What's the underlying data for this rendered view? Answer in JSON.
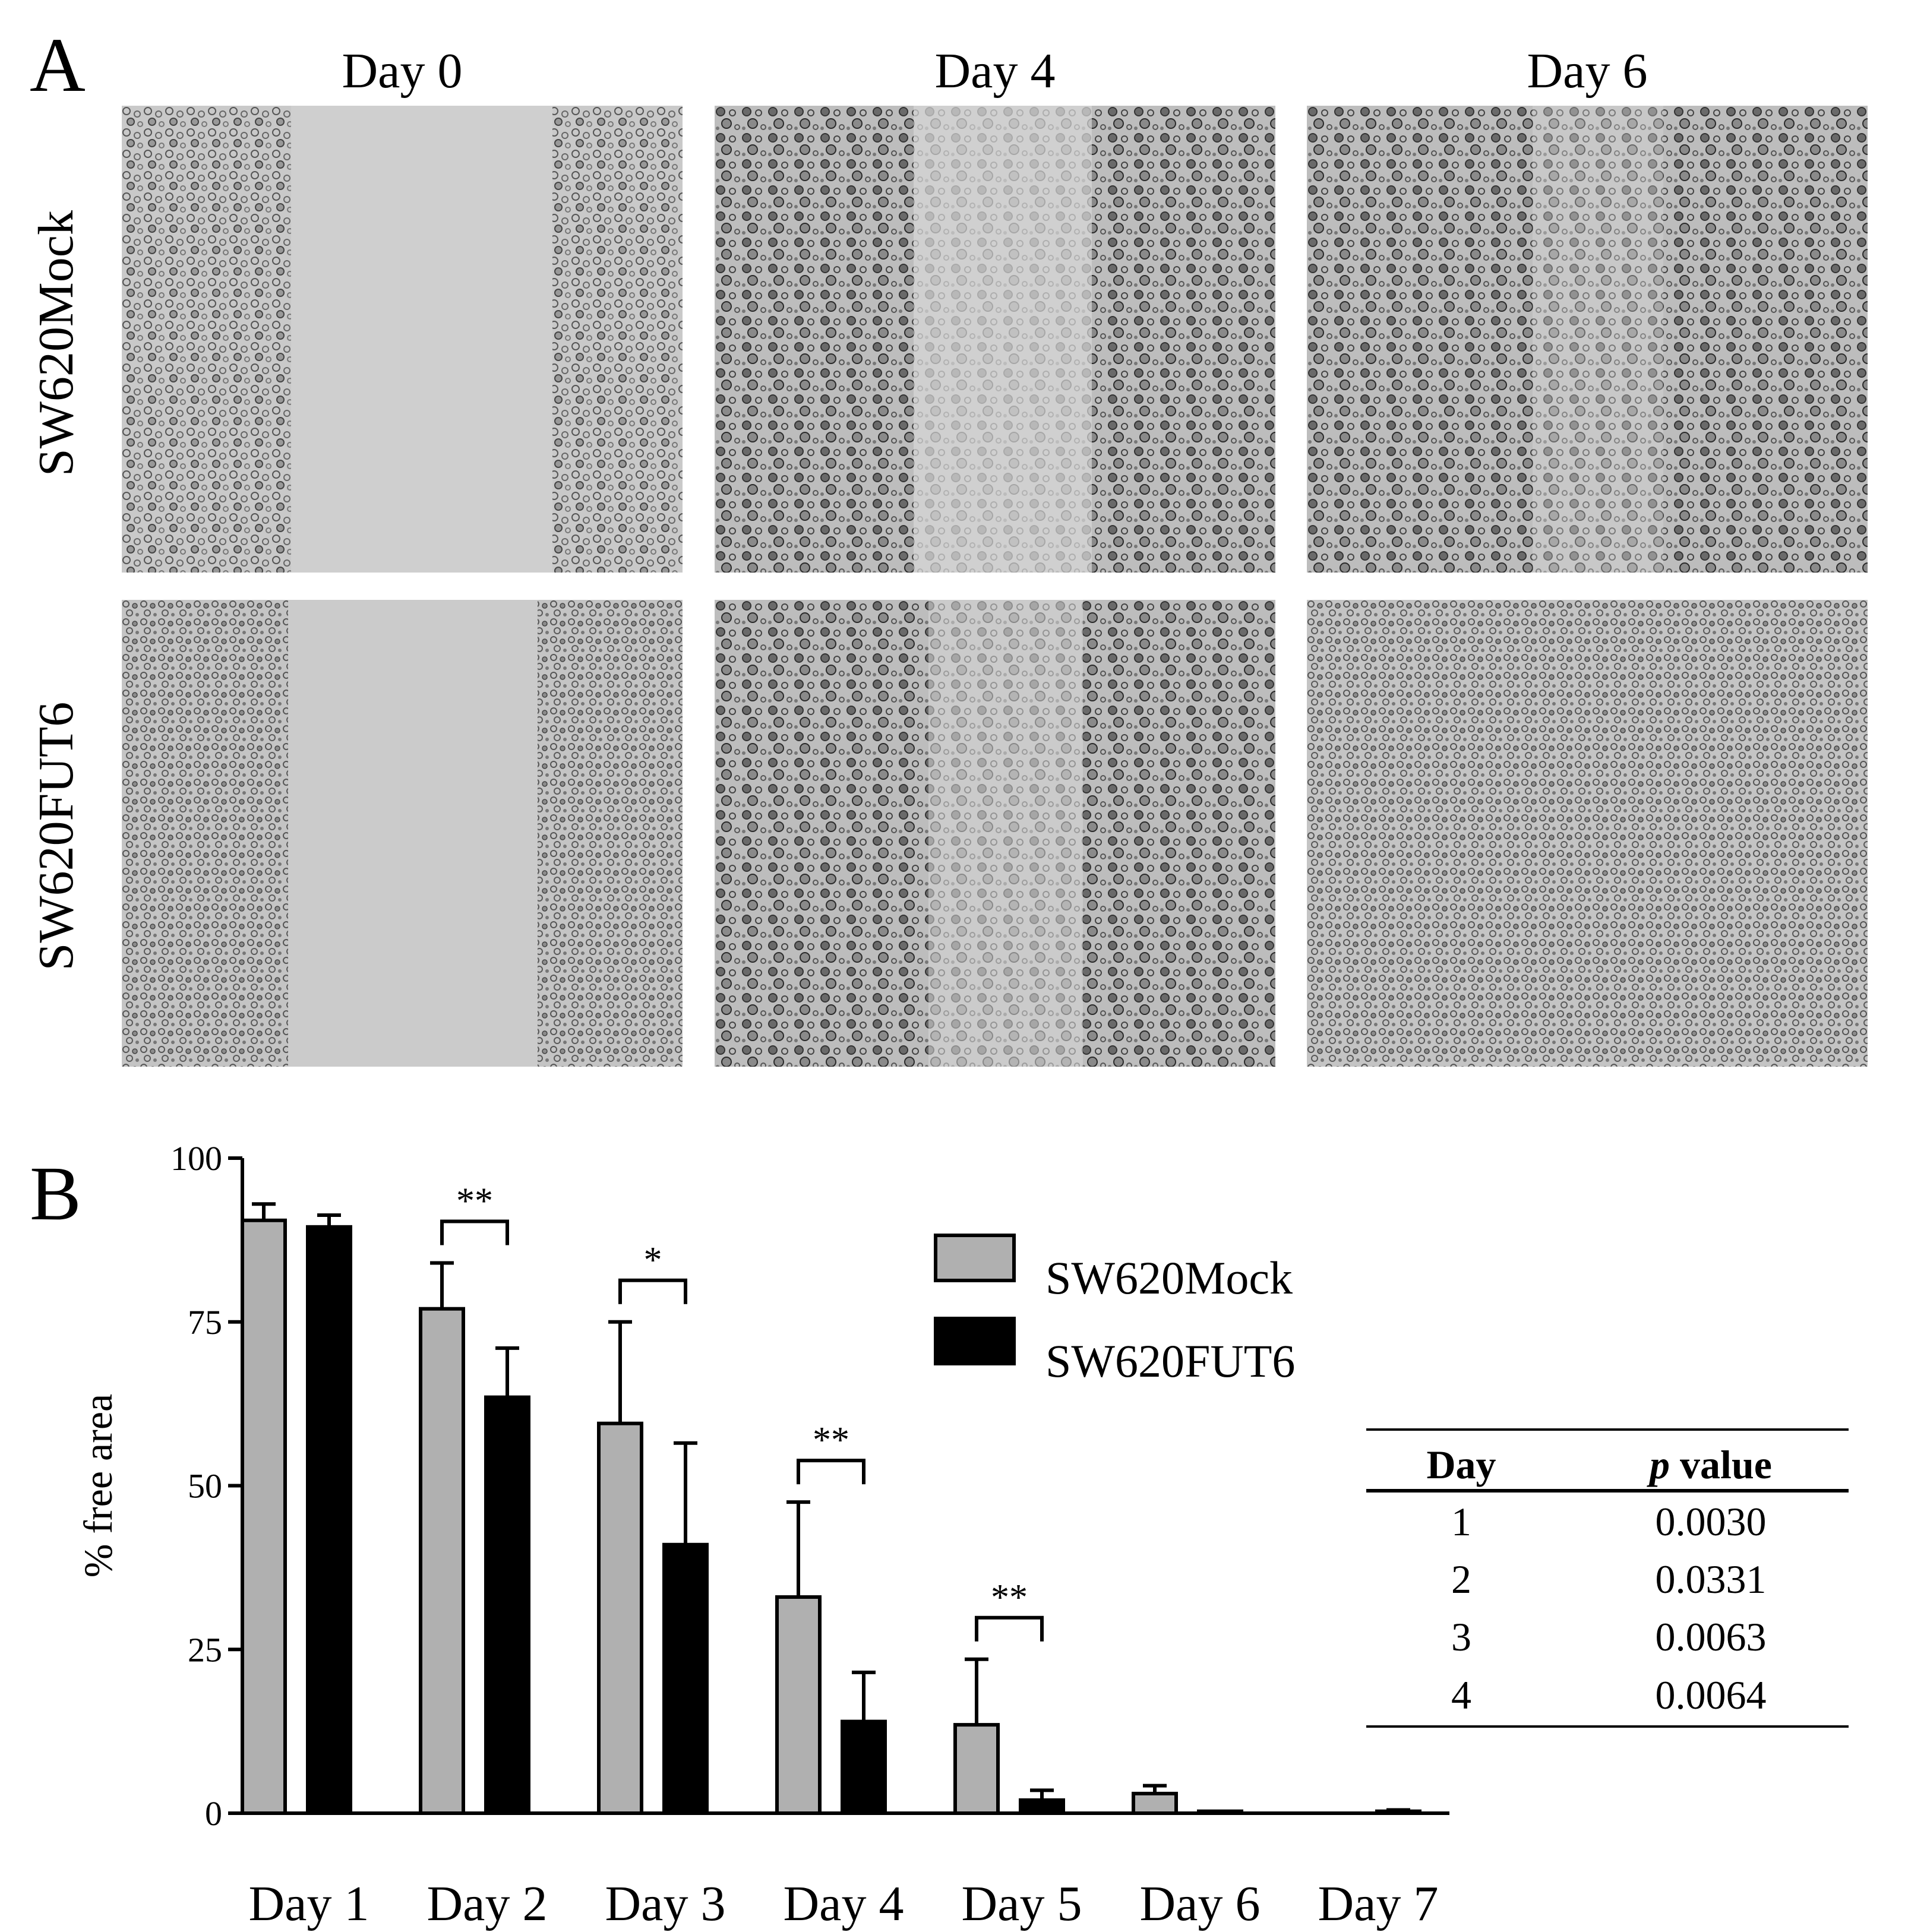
{
  "panel_a": {
    "letter": "A",
    "columns": [
      "Day 0",
      "Day 4",
      "Day 6"
    ],
    "rows": [
      "SW620Mock",
      "SW620FUT6"
    ]
  },
  "panel_b": {
    "letter": "B",
    "legend": [
      "SW620Mock",
      "SW620FUT6"
    ],
    "significance": [
      "**",
      "*",
      "**",
      "**"
    ],
    "table": {
      "headers": [
        "Day",
        "p value"
      ],
      "header_italic_part": "p",
      "header_rest": " value",
      "rows": [
        {
          "day": "1",
          "p": "0.0030"
        },
        {
          "day": "2",
          "p": "0.0331"
        },
        {
          "day": "3",
          "p": "0.0063"
        },
        {
          "day": "4",
          "p": "0.0064"
        }
      ]
    }
  },
  "chart_data": {
    "type": "bar",
    "title": "",
    "xlabel": "",
    "ylabel": "% free area",
    "ylim": [
      0,
      100
    ],
    "yticks": [
      0,
      25,
      50,
      75,
      100
    ],
    "categories": [
      "Day 1",
      "Day 2",
      "Day 3",
      "Day 4",
      "Day 5",
      "Day 6",
      "Day 7"
    ],
    "series": [
      {
        "name": "SW620Mock",
        "color": "#b0b0b0",
        "values": [
          90.5,
          77,
          59.5,
          33,
          13.5,
          3,
          0
        ],
        "errors": [
          2.5,
          7,
          15.5,
          14.5,
          10,
          1.2,
          0
        ]
      },
      {
        "name": "SW620FUT6",
        "color": "#000000",
        "values": [
          89.5,
          63.5,
          41,
          14,
          2,
          0.3,
          0.3
        ],
        "errors": [
          1.8,
          7.5,
          15.5,
          7.5,
          1.5,
          0,
          0.2
        ]
      }
    ],
    "significance": [
      {
        "category": "Day 2",
        "label": "**"
      },
      {
        "category": "Day 3",
        "label": "*"
      },
      {
        "category": "Day 4",
        "label": "**"
      },
      {
        "category": "Day 5",
        "label": "**"
      }
    ],
    "legend_position": "top-right",
    "grid": false
  }
}
